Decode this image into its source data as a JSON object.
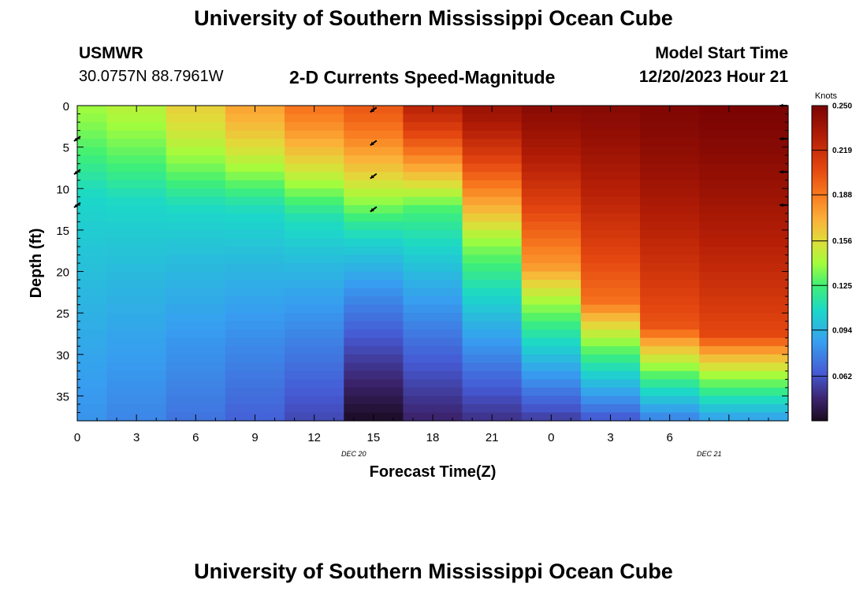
{
  "page": {
    "title": "University of Southern Mississippi Ocean Cube",
    "title_repeat": "University of Southern Mississippi Ocean Cube",
    "station_id": "USMWR",
    "station_coords": "30.0757N  88.7961W",
    "subtitle": "2-D Currents Speed-Magnitude",
    "model_start_label": "Model Start Time",
    "model_start_value": "12/20/2023 Hour 21"
  },
  "chart_data": {
    "type": "heatmap",
    "title": "2-D Currents Speed-Magnitude",
    "xlabel": "Forecast Time(Z)",
    "ylabel": "Depth (ft)",
    "xlim": [
      0,
      36
    ],
    "ylim": [
      0,
      38
    ],
    "x_ticks": [
      0,
      3,
      6,
      9,
      12,
      15,
      18,
      21,
      24,
      27,
      30,
      33,
      36
    ],
    "x_tick_labels": [
      "0",
      "3",
      "6",
      "9",
      "12",
      "15",
      "18",
      "21",
      "0",
      "3",
      "6"
    ],
    "date_labels": [
      {
        "text": "DEC 20",
        "x": 14
      },
      {
        "text": "DEC 21",
        "x": 32
      }
    ],
    "y_ticks": [
      0,
      5,
      10,
      15,
      20,
      25,
      30,
      35
    ],
    "y_tick_labels": [
      "0",
      "5",
      "10",
      "15",
      "20",
      "25",
      "30",
      "35"
    ],
    "colorbar": {
      "unit": "Knots",
      "min": 0.031,
      "max": 0.25,
      "tick_values": [
        0.25,
        0.219,
        0.188,
        0.156,
        0.125,
        0.094,
        0.062
      ],
      "tick_labels": [
        "0.250",
        "0.219",
        "0.188",
        "0.156",
        "0.125",
        "0.094",
        "0.062"
      ]
    },
    "time_steps": [
      0,
      3,
      6,
      9,
      12,
      15,
      18,
      21,
      24,
      27,
      30,
      33,
      36
    ],
    "column_profiles": [
      {
        "time": 0,
        "surface": 0.14,
        "mid": 0.11,
        "bottom": 0.082,
        "thermocline": 10
      },
      {
        "time": 3,
        "surface": 0.145,
        "mid": 0.11,
        "bottom": 0.078,
        "thermocline": 11
      },
      {
        "time": 6,
        "surface": 0.16,
        "mid": 0.11,
        "bottom": 0.072,
        "thermocline": 12
      },
      {
        "time": 9,
        "surface": 0.175,
        "mid": 0.112,
        "bottom": 0.066,
        "thermocline": 12
      },
      {
        "time": 12,
        "surface": 0.19,
        "mid": 0.115,
        "bottom": 0.058,
        "thermocline": 13
      },
      {
        "time": 15,
        "surface": 0.2,
        "mid": 0.12,
        "bottom": 0.032,
        "thermocline": 14
      },
      {
        "time": 18,
        "surface": 0.225,
        "mid": 0.13,
        "bottom": 0.045,
        "thermocline": 12
      },
      {
        "time": 21,
        "surface": 0.238,
        "mid": 0.15,
        "bottom": 0.05,
        "thermocline": 15
      },
      {
        "time": 24,
        "surface": 0.244,
        "mid": 0.175,
        "bottom": 0.054,
        "thermocline": 20
      },
      {
        "time": 27,
        "surface": 0.245,
        "mid": 0.19,
        "bottom": 0.062,
        "thermocline": 24
      },
      {
        "time": 30,
        "surface": 0.248,
        "mid": 0.2,
        "bottom": 0.075,
        "thermocline": 27
      },
      {
        "time": 33,
        "surface": 0.25,
        "mid": 0.205,
        "bottom": 0.085,
        "thermocline": 28
      }
    ],
    "vector_arrows": [
      {
        "time": 0,
        "depths": [
          4,
          8,
          12
        ],
        "direction": "southwest"
      },
      {
        "time": 15,
        "depths": [
          0.5,
          4.5,
          8.5,
          12.5
        ],
        "direction": "southwest"
      },
      {
        "time": 36,
        "depths": [
          0,
          4,
          8,
          12
        ],
        "direction": "west"
      }
    ]
  },
  "colors": {
    "background": "#ffffff",
    "text": "#000000"
  }
}
